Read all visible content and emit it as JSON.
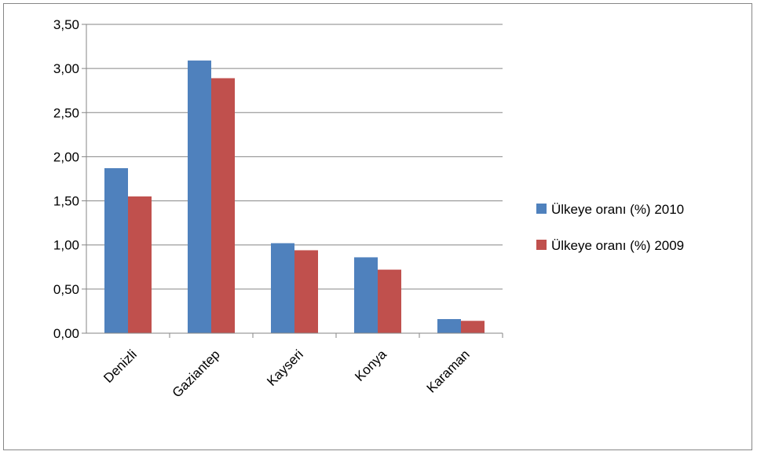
{
  "chart_data": {
    "type": "bar",
    "title": "",
    "xlabel": "",
    "ylabel": "",
    "categories": [
      "Denizli",
      "Gaziantep",
      "Kayseri",
      "Konya",
      "Karaman"
    ],
    "series": [
      {
        "name": "Ülkeye oranı (%) 2010",
        "color": "#4F81BD",
        "values": [
          1.87,
          3.09,
          1.02,
          0.86,
          0.16
        ]
      },
      {
        "name": "Ülkeye oranı (%) 2009",
        "color": "#C0504D",
        "values": [
          1.55,
          2.89,
          0.94,
          0.72,
          0.14
        ]
      }
    ],
    "ylim": [
      0,
      3.5
    ],
    "y_ticks": [
      0,
      0.5,
      1.0,
      1.5,
      2.0,
      2.5,
      3.0,
      3.5
    ],
    "y_tick_labels": [
      "0,00",
      "0,50",
      "1,00",
      "1,50",
      "2,00",
      "2,50",
      "3,00",
      "3,50"
    ],
    "grid": true,
    "legend_position": "right",
    "gridline_color": "#868686",
    "x_tick_label_rotation": "-45deg"
  }
}
